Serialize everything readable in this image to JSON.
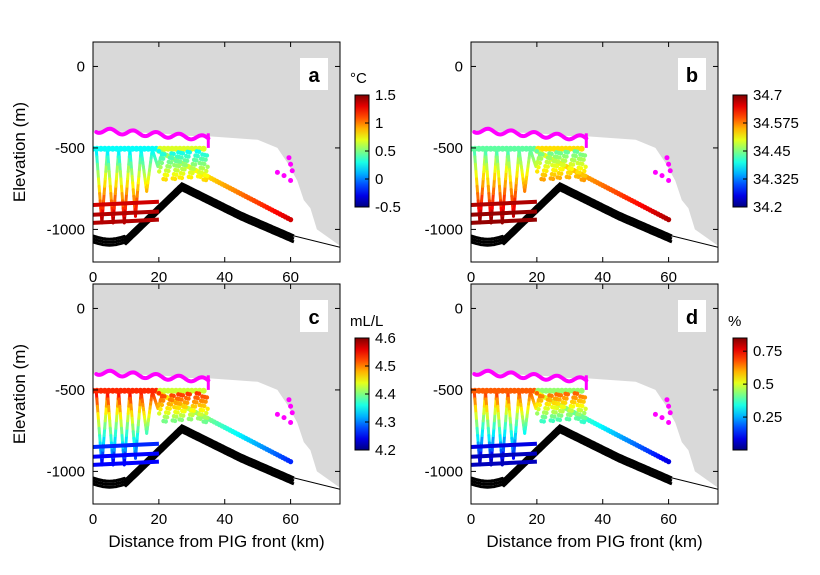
{
  "colors": {
    "ice": "#d9d9d9",
    "draft": "#ff00ff",
    "bed": "#000000",
    "label_box": "#ffffff"
  },
  "chart_data": [
    {
      "type": "scatter",
      "panel_label": "a",
      "xlabel": "",
      "ylabel": "Elevation (m)",
      "xlim": [
        0,
        75
      ],
      "ylim": [
        -1200,
        150
      ],
      "xticks": [
        "0",
        "20",
        "40",
        "60"
      ],
      "yticks": [
        "0",
        "-500",
        "-1000"
      ],
      "colorbar": {
        "unit": "°C",
        "min": -0.5,
        "max": 1.5,
        "ticks": [
          "1.5",
          "1",
          "0.5",
          "0",
          "-0.5"
        ],
        "tick_values": [
          1.5,
          1,
          0.5,
          0,
          -0.5
        ]
      },
      "profile_range": [
        0.2,
        1.4
      ]
    },
    {
      "type": "scatter",
      "panel_label": "b",
      "xlabel": "",
      "ylabel": "",
      "xlim": [
        0,
        75
      ],
      "ylim": [
        -1200,
        150
      ],
      "xticks": [
        "0",
        "20",
        "40",
        "60"
      ],
      "yticks": [
        "0",
        "-500",
        "-1000"
      ],
      "colorbar": {
        "unit": "",
        "min": 34.2,
        "max": 34.7,
        "ticks": [
          "34.7",
          "34.575",
          "34.45",
          "34.325",
          "34.2"
        ],
        "tick_values": [
          34.7,
          34.575,
          34.45,
          34.325,
          34.2
        ]
      },
      "profile_range": [
        34.42,
        34.69
      ]
    },
    {
      "type": "scatter",
      "panel_label": "c",
      "xlabel": "Distance from PIG front (km)",
      "ylabel": "Elevation (m)",
      "xlim": [
        0,
        75
      ],
      "ylim": [
        -1200,
        150
      ],
      "xticks": [
        "0",
        "20",
        "40",
        "60"
      ],
      "yticks": [
        "0",
        "-500",
        "-1000"
      ],
      "colorbar": {
        "unit": "mL/L",
        "min": 4.2,
        "max": 4.6,
        "ticks": [
          "4.6",
          "4.5",
          "4.4",
          "4.3",
          "4.2"
        ],
        "tick_values": [
          4.6,
          4.5,
          4.4,
          4.3,
          4.2
        ]
      },
      "profile_range": [
        4.55,
        4.25
      ]
    },
    {
      "type": "scatter",
      "panel_label": "d",
      "xlabel": "Distance from PIG front (km)",
      "ylabel": "",
      "xlim": [
        0,
        75
      ],
      "ylim": [
        -1200,
        150
      ],
      "xticks": [
        "0",
        "20",
        "40",
        "60"
      ],
      "yticks": [
        "0",
        "-500",
        "-1000"
      ],
      "colorbar": {
        "unit": "%",
        "min": 0,
        "max": 0.85,
        "ticks": [
          "0.75",
          "0.5",
          "0.25"
        ],
        "tick_values": [
          0.75,
          0.5,
          0.25
        ]
      },
      "profile_range": [
        0.7,
        0.05
      ]
    }
  ]
}
